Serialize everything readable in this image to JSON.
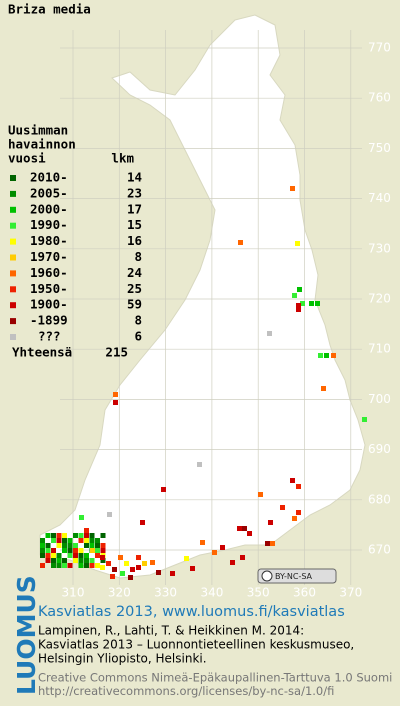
{
  "title": "Briza media",
  "legend": {
    "heading": [
      "Uusimman",
      "havainnon",
      "vuosi"
    ],
    "count_heading": "lkm",
    "rows": [
      {
        "label": "2010-",
        "count": 14,
        "color": "#006400"
      },
      {
        "label": "2005-",
        "count": 23,
        "color": "#008c00"
      },
      {
        "label": "2000-",
        "count": 17,
        "color": "#00c000"
      },
      {
        "label": "1990-",
        "count": 15,
        "color": "#33ee33"
      },
      {
        "label": "1980-",
        "count": 16,
        "color": "#ffff00"
      },
      {
        "label": "1970-",
        "count": 8,
        "color": "#ffcc00"
      },
      {
        "label": "1960-",
        "count": 24,
        "color": "#ff6600"
      },
      {
        "label": "1950-",
        "count": 25,
        "color": "#ee2200"
      },
      {
        "label": "1900-",
        "count": 59,
        "color": "#cc0000"
      },
      {
        "label": "-1899",
        "count": 8,
        "color": "#990000"
      },
      {
        "label": "???",
        "count": 6,
        "color": "#c0c0c0"
      }
    ],
    "total_label": "Yhteensä",
    "total": 215
  },
  "map": {
    "y_labels": [
      770,
      760,
      750,
      740,
      730,
      720,
      710,
      700,
      690,
      680,
      670
    ],
    "x_labels": [
      310,
      320,
      330,
      340,
      350,
      360,
      370
    ]
  },
  "badge": "BY-NC-SA",
  "footer": {
    "site": "Kasviatlas 2013, www.luomus.fi/kasviatlas",
    "citation": [
      "Lampinen, R., Lahti, T. & Heikkinen M. 2014:",
      "Kasviatlas 2013 – Luonnontieteellinen keskusmuseo,",
      "Helsingin Yliopisto, Helsinki."
    ],
    "license": [
      "Creative Commons Nimeä-Epäkaupallinen-Tarttuva 1.0 Suomi",
      "http://creativecommons.org/licenses/by-nc-sa/1.0/fi"
    ],
    "logo": "LUOMUS"
  }
}
